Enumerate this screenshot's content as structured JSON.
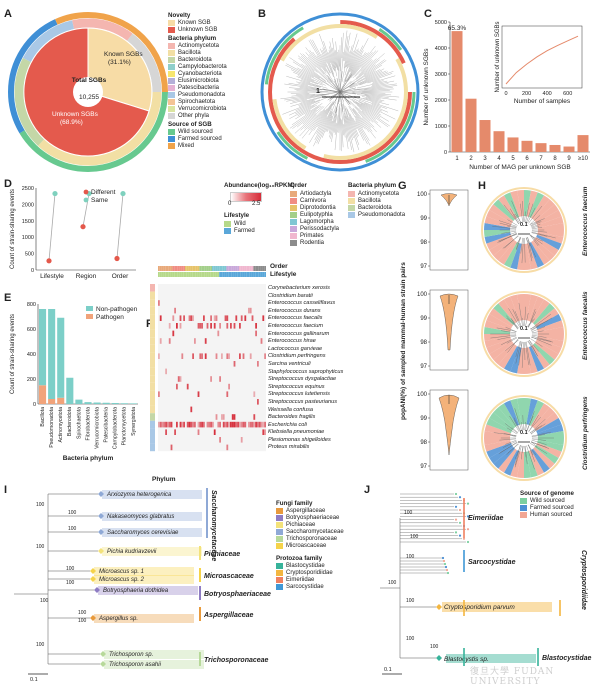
{
  "panels": {
    "A": "A",
    "B": "B",
    "C": "C",
    "D": "D",
    "E": "E",
    "F": "F",
    "G": "G",
    "H": "H",
    "I": "I",
    "J": "J"
  },
  "panelA": {
    "center_label": "Total SGBs",
    "center_value": "10,255",
    "known_label": "Known SGBs",
    "known_pct": "(31.1%)",
    "unknown_label": "Unknown SGBs",
    "unknown_pct": "(68.9%)",
    "colors": {
      "known": "#f7dca6",
      "unknown": "#e45a4d"
    },
    "legend": {
      "novelty_title": "Novelty",
      "novelty": [
        {
          "label": "Known SGB",
          "color": "#f7dca6"
        },
        {
          "label": "Unknown SGB",
          "color": "#e45a4d"
        }
      ],
      "phylum_title": "Bacteria phylum",
      "phylum": [
        {
          "label": "Actinomycetota",
          "color": "#f4b6b0"
        },
        {
          "label": "Bacillota",
          "color": "#f2dfa4"
        },
        {
          "label": "Bacteroidota",
          "color": "#c4d7a7"
        },
        {
          "label": "Campylobacterota",
          "color": "#8fcfcb"
        },
        {
          "label": "Cyanobacteriota",
          "color": "#f7e66e"
        },
        {
          "label": "Elusimicrobiota",
          "color": "#b5b0d8"
        },
        {
          "label": "Patescibacteria",
          "color": "#e6b2d3"
        },
        {
          "label": "Pseudomonadota",
          "color": "#a9c8e6"
        },
        {
          "label": "Spirochaetota",
          "color": "#f4c495"
        },
        {
          "label": "Verrucomicrobiota",
          "color": "#dbe5a1"
        },
        {
          "label": "Other phyla",
          "color": "#d6d6d6"
        }
      ],
      "source_title": "Source of SGB",
      "source": [
        {
          "label": "Wild sourced",
          "color": "#67c98f"
        },
        {
          "label": "Farmed sourced",
          "color": "#3f8fd6"
        },
        {
          "label": "Mixed",
          "color": "#f0a34a"
        }
      ]
    }
  },
  "panelB": {
    "scale_label": "1"
  },
  "panelC": {
    "chart_data": {
      "type": "bar",
      "categories": [
        "1",
        "2",
        "3",
        "4",
        "5",
        "6",
        "7",
        "8",
        "9",
        "≥10"
      ],
      "values": [
        4650,
        2050,
        1230,
        800,
        560,
        430,
        340,
        270,
        210,
        650
      ],
      "annotation": "65.3%",
      "xlabel": "Number of MAG per unknown SGB",
      "ylabel": "Number of unknown SGBs",
      "ylim": [
        0,
        5000
      ],
      "yticks": [
        "0",
        "1000",
        "2000",
        "3000",
        "4000",
        "5000"
      ],
      "color": "#e58a6b",
      "inset": {
        "type": "line",
        "xlabel": "Number of samples",
        "ylabel": "Number of unknown SGBs",
        "xticks": [
          "0",
          "200",
          "400",
          "600"
        ],
        "x": [
          0,
          100,
          200,
          300,
          400,
          500,
          600,
          700
        ],
        "y": [
          0,
          0.22,
          0.38,
          0.52,
          0.64,
          0.74,
          0.83,
          0.92
        ],
        "color": "#e58a6b"
      }
    }
  },
  "panelD": {
    "chart_data": {
      "type": "scatter",
      "categories": [
        "Lifestyle",
        "Region",
        "Order"
      ],
      "series": [
        {
          "name": "Different",
          "values": [
            280,
            1320,
            350
          ],
          "color": "#e4584b"
        },
        {
          "name": "Same",
          "values": [
            2330,
            2330,
            2330
          ],
          "color": "#7fd1be"
        }
      ],
      "ylabel": "Count of strain-sharing events",
      "ylim": [
        0,
        2500
      ],
      "yticks": [
        "0",
        "500",
        "1000",
        "1500",
        "2000",
        "2500"
      ]
    }
  },
  "panelE": {
    "chart_data": {
      "type": "bar",
      "categories": [
        "Bacillota",
        "Pseudomonadota",
        "Actinomycetota",
        "Bacteroidota",
        "Spirochaetota",
        "Fibrobacterota",
        "Verrucomicrobiota",
        "Patescibacteria",
        "Campylobacterota",
        "Planctomycetota",
        "Synergistota"
      ],
      "series": [
        {
          "name": "Non-pathogen",
          "values": [
            610,
            720,
            640,
            210,
            35,
            15,
            12,
            10,
            8,
            6,
            5
          ],
          "color": "#7ccfc8"
        },
        {
          "name": "Pathogen",
          "values": [
            150,
            40,
            50,
            0,
            0,
            0,
            0,
            0,
            0,
            0,
            0
          ],
          "color": "#f1a37a"
        }
      ],
      "ylabel": "Count of strain-sharing events",
      "xlabel": "Bacteria phylum",
      "ylim": [
        0,
        800
      ],
      "yticks": [
        "0",
        "200",
        "400",
        "600",
        "800"
      ]
    }
  },
  "panelF": {
    "legend": {
      "abundance_title": "Abundance(log₁₀RPKM)",
      "abundance_min": "0",
      "abundance_max": "2.5",
      "lifestyle_title": "Lifestyle",
      "lifestyle": [
        {
          "label": "Wild",
          "color": "#b6d98a"
        },
        {
          "label": "Farmed",
          "color": "#5aa7d9"
        }
      ],
      "order_title": "Order",
      "order": [
        {
          "label": "Artiodactyla",
          "color": "#e8a97a"
        },
        {
          "label": "Carnivora",
          "color": "#f08d83"
        },
        {
          "label": "Diprotodontia",
          "color": "#e6c36a"
        },
        {
          "label": "Eulipotyphla",
          "color": "#a3cf8a"
        },
        {
          "label": "Lagomorpha",
          "color": "#7fc7d3"
        },
        {
          "label": "Perissodactyla",
          "color": "#c9a8da"
        },
        {
          "label": "Primates",
          "color": "#f0b7cf"
        },
        {
          "label": "Rodentia",
          "color": "#8c8c8c"
        }
      ],
      "phylum_title": "Bacteria phylum",
      "phylum": [
        {
          "label": "Actinomycetota",
          "color": "#f4b6b0"
        },
        {
          "label": "Bacillota",
          "color": "#f2dfa4"
        },
        {
          "label": "Bacteroidota",
          "color": "#c4d7a7"
        },
        {
          "label": "Pseudomonadota",
          "color": "#a9c8e6"
        }
      ]
    },
    "order_label": "Order",
    "lifestyle_label": "Lifestyle",
    "phylum_label": "Phylum",
    "species": [
      "Corynebacterium xerosis",
      "Clostridium baratii",
      "Enterococcus casseliflavus",
      "Enterococcus durans",
      "Enterococcus faecalis",
      "Enterococcus faecium",
      "Enterococcus gallinarum",
      "Enterococcus hirae",
      "Lactococcus garvieae",
      "Clostridium perfringens",
      "Sarcina ventriculi",
      "Staphylococcus saprophyticus",
      "Streptococcus dysgalactiae",
      "Streptococcus equinus",
      "Streptococcus lutetiensis",
      "Streptococcus pasteurianus",
      "Weissella confusa",
      "Bacteroides fragilis",
      "Escherichia coli",
      "Klebsiella pneumoniae",
      "Plesiomonas shigelloides",
      "Proteus mirabilis"
    ]
  },
  "panelG": {
    "ylabel": "popANI(%) of sampled mammal-human strain pairs",
    "yticks_top": [
      "100",
      "99",
      "98",
      "97"
    ],
    "yticks_mid": [
      "100",
      "99",
      "98",
      "97"
    ],
    "yticks_bot": [
      "100",
      "99",
      "98",
      "97"
    ],
    "color": "#f3b27a"
  },
  "panelH": {
    "labels": [
      "Enterococcus faecium",
      "Enterococcus faecalis",
      "Clostridium perfringens"
    ],
    "scale_labels": [
      "0.1",
      "0.1",
      "0.1"
    ]
  },
  "panelI": {
    "taxa": [
      "Arxiozyma heterogenica",
      "Nakaseomyces glabratus",
      "Saccharomyces cerevisiae",
      "Pichia kudriavzevii",
      "Microascus sp. 1",
      "Microascus sp. 2",
      "Botryosphaeria dothidea",
      "Aspergillus sp.",
      "Trichosporon sp.",
      "Trichosporon asahii"
    ],
    "families": [
      "Saccharomycetaceae",
      "Pichiaceae",
      "Microascaceae",
      "Botryosphaeriaceae",
      "Aspergillaceae",
      "Trichosporonaceae"
    ],
    "bootstrap": [
      "100",
      "100",
      "100",
      "100",
      "100",
      "100",
      "100",
      "100",
      "100",
      "100"
    ],
    "scale_label": "0.1",
    "legend": {
      "fungi_title": "Fungi family",
      "fungi": [
        {
          "label": "Aspergillaceae",
          "color": "#e89a3c"
        },
        {
          "label": "Botryosphaeriaceae",
          "color": "#8e7cc3"
        },
        {
          "label": "Pichiaceae",
          "color": "#f3e27a"
        },
        {
          "label": "Saccharomycetaceae",
          "color": "#8fa9d6"
        },
        {
          "label": "Trichosporonaceae",
          "color": "#b7d99a"
        },
        {
          "label": "Microascaceae",
          "color": "#f5d34a"
        }
      ],
      "protozoa_title": "Protozoa family",
      "protozoa": [
        {
          "label": "Blastocystidae",
          "color": "#37b39a"
        },
        {
          "label": "Cryptosporidiidae",
          "color": "#f3b640"
        },
        {
          "label": "Eimeriidae",
          "color": "#f08060"
        },
        {
          "label": "Sarcocystidae",
          "color": "#3f98d6"
        }
      ]
    }
  },
  "panelJ": {
    "legend_title": "Source of genome",
    "legend": [
      {
        "label": "Wild sourced",
        "color": "#7ccfa0"
      },
      {
        "label": "Farmed sourced",
        "color": "#4b8fd3"
      },
      {
        "label": "Human sourced",
        "color": "#f2a694"
      }
    ],
    "families": [
      "Eimeriidae",
      "Sarcocystidae",
      "Cryptosporidiidae",
      "Blastocystidae"
    ],
    "taxa": [
      "Cryptosporidium parvum",
      "Blastocystis sp."
    ],
    "bootstrap": [
      "100",
      "100",
      "100",
      "100",
      "100",
      "100",
      "100"
    ],
    "scale_label": "0.1"
  },
  "watermark": "復旦大學  FUDAN UNIVERSITY"
}
